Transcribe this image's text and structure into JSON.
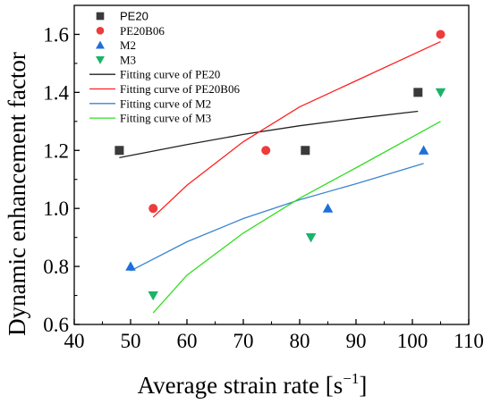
{
  "chart_data": {
    "type": "scatter",
    "xlabel": "Average strain rate [s",
    "xlabel_sup": "−1",
    "xlabel_tail": "]",
    "ylabel": "Dynamic enhancement factor",
    "xlim": [
      40,
      110
    ],
    "ylim": [
      0.6,
      1.7
    ],
    "x_ticks": [
      40,
      50,
      60,
      70,
      80,
      90,
      100,
      110
    ],
    "y_ticks": [
      0.6,
      0.8,
      1.0,
      1.2,
      1.4,
      1.6
    ],
    "x_tick_labels": [
      "40",
      "50",
      "60",
      "70",
      "80",
      "90",
      "100",
      "110"
    ],
    "y_tick_labels": [
      "0.6",
      "0.8",
      "1.0",
      "1.2",
      "1.4",
      "1.6"
    ],
    "legend_position": "top-left",
    "series": [
      {
        "name": "PE20",
        "marker": "square",
        "color": "#3a3a3a",
        "points": [
          {
            "x": 48,
            "y": 1.2
          },
          {
            "x": 81,
            "y": 1.2
          },
          {
            "x": 101,
            "y": 1.4
          }
        ]
      },
      {
        "name": "PE20B06",
        "marker": "circle",
        "color": "#ee3b3b",
        "points": [
          {
            "x": 54,
            "y": 1.0
          },
          {
            "x": 74,
            "y": 1.2
          },
          {
            "x": 105,
            "y": 1.6
          }
        ]
      },
      {
        "name": "M2",
        "marker": "triangle-up",
        "color": "#1e6fd9",
        "points": [
          {
            "x": 50,
            "y": 0.8
          },
          {
            "x": 85,
            "y": 1.0
          },
          {
            "x": 102,
            "y": 1.2
          }
        ]
      },
      {
        "name": "M3",
        "marker": "triangle-down",
        "color": "#1bb36a",
        "points": [
          {
            "x": 54,
            "y": 0.7
          },
          {
            "x": 82,
            "y": 0.9
          },
          {
            "x": 105,
            "y": 1.4
          }
        ]
      }
    ],
    "fits": [
      {
        "name": "Fitting curve of PE20",
        "color": "#222222",
        "points": [
          {
            "x": 48,
            "y": 1.175
          },
          {
            "x": 60,
            "y": 1.22
          },
          {
            "x": 70,
            "y": 1.255
          },
          {
            "x": 80,
            "y": 1.285
          },
          {
            "x": 90,
            "y": 1.31
          },
          {
            "x": 101,
            "y": 1.335
          }
        ]
      },
      {
        "name": "Fitting curve of PE20B06",
        "color": "#ff2020",
        "points": [
          {
            "x": 54,
            "y": 0.97
          },
          {
            "x": 60,
            "y": 1.08
          },
          {
            "x": 70,
            "y": 1.23
          },
          {
            "x": 80,
            "y": 1.35
          },
          {
            "x": 90,
            "y": 1.44
          },
          {
            "x": 105,
            "y": 1.575
          }
        ]
      },
      {
        "name": "Fitting curve of M2",
        "color": "#3a85d0",
        "points": [
          {
            "x": 50,
            "y": 0.785
          },
          {
            "x": 60,
            "y": 0.885
          },
          {
            "x": 70,
            "y": 0.965
          },
          {
            "x": 80,
            "y": 1.03
          },
          {
            "x": 90,
            "y": 1.085
          },
          {
            "x": 102,
            "y": 1.155
          }
        ]
      },
      {
        "name": "Fitting curve of M3",
        "color": "#33dd22",
        "points": [
          {
            "x": 54,
            "y": 0.64
          },
          {
            "x": 60,
            "y": 0.77
          },
          {
            "x": 70,
            "y": 0.915
          },
          {
            "x": 80,
            "y": 1.035
          },
          {
            "x": 90,
            "y": 1.14
          },
          {
            "x": 105,
            "y": 1.3
          }
        ]
      }
    ]
  }
}
